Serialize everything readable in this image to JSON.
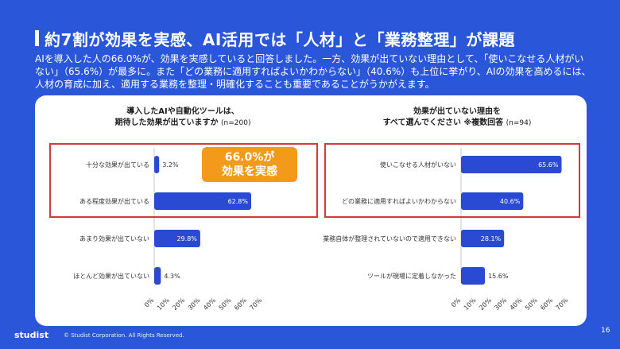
{
  "title": "約7割が効果を実感、AI活用では「人材」と「業務整理」が課題",
  "description": "AIを導入した人の66.0%が、効果を実感していると回答しました。一方、効果が出ていない理由として、「使いこなせる人材がいない」（65.6%）が最多に。また「どの業務に適用すればよいかわからない」（40.6%）も上位に挙がり、AIの効果を高めるには、人材の育成に加え、適用する業務を整理・明確化することも重要であることがうかがえます。",
  "callout": {
    "line1": "66.0%が",
    "line2": "効果を実感"
  },
  "colors": {
    "background": "#2a57d9",
    "bar": "#2a4ad4",
    "highlight": "#d23b3b",
    "callout": "#f39a1b"
  },
  "footer": {
    "logo": "studist",
    "copyright": "© Studist Corporation. All Rights Reserved.",
    "page": "16"
  },
  "chart_data": [
    {
      "type": "bar",
      "orientation": "horizontal",
      "title_line1": "導入したAIや自動化ツールは、",
      "title_line2": "期待した効果が出ていますか",
      "n": "(n=200)",
      "categories": [
        "十分な効果が出ている",
        "ある程度効果が出ている",
        "あまり効果が出ていない",
        "ほとんど効果が出ていない"
      ],
      "values": [
        3.2,
        62.8,
        29.8,
        4.3
      ],
      "value_labels": [
        "3.2%",
        "62.8%",
        "29.8%",
        "4.3%"
      ],
      "xlim": [
        0,
        70
      ],
      "ticks": [
        "0%",
        "10%",
        "20%",
        "30%",
        "40%",
        "50%",
        "60%",
        "70%"
      ]
    },
    {
      "type": "bar",
      "orientation": "horizontal",
      "title_line1": "効果が出ていない理由を",
      "title_line2": "すべて選んでください ※複数回答",
      "n": "(n=94)",
      "categories": [
        "使いこなせる人材がいない",
        "どの業務に適用すればよいかわからない",
        "業務自体が整理されていないので適用できない",
        "ツールが現場に定着しなかった"
      ],
      "values": [
        65.6,
        40.6,
        28.1,
        15.6
      ],
      "value_labels": [
        "65.6%",
        "40.6%",
        "28.1%",
        "15.6%"
      ],
      "xlim": [
        0,
        70
      ],
      "ticks": [
        "0%",
        "10%",
        "20%",
        "30%",
        "40%",
        "50%",
        "60%",
        "70%"
      ]
    }
  ]
}
